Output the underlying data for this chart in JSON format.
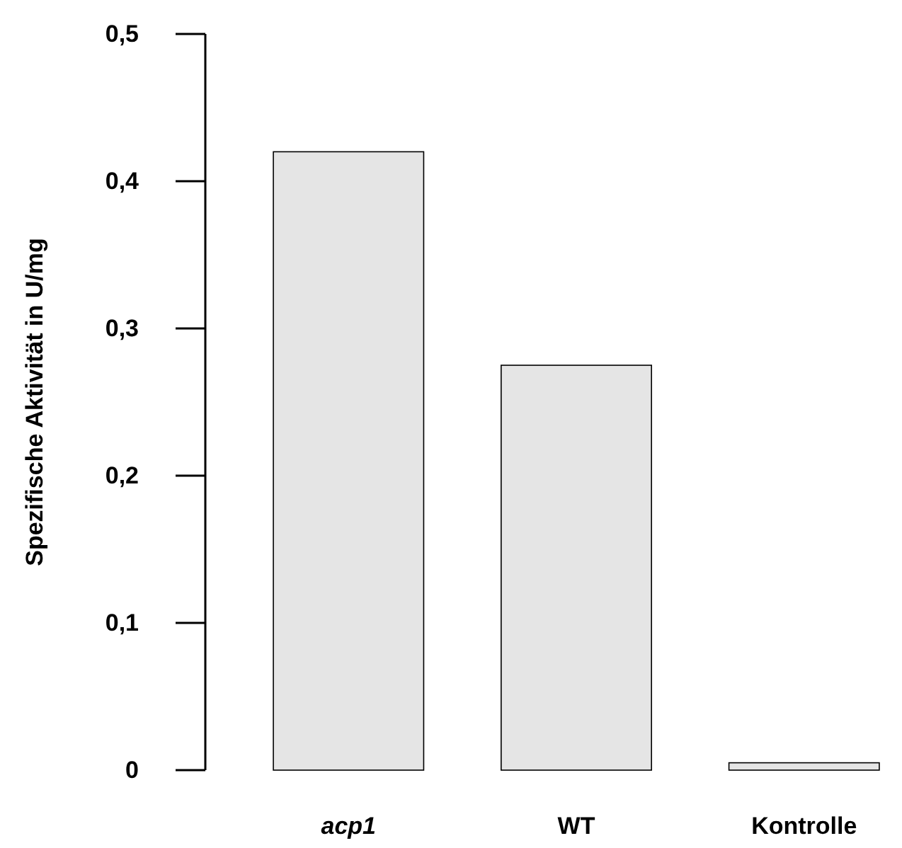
{
  "chart_data": {
    "type": "bar",
    "ylabel": "Spezifische Aktivität in U/mg",
    "categories": [
      "acp1",
      "WT",
      "Kontrolle"
    ],
    "values": [
      0.42,
      0.275,
      0.005
    ],
    "color": "#e5e5e5",
    "ylim": [
      0,
      0.5
    ],
    "yticks": [
      {
        "value": 0,
        "label": "0"
      },
      {
        "value": 0.1,
        "label": "0,1"
      },
      {
        "value": 0.2,
        "label": "0,2"
      },
      {
        "value": 0.3,
        "label": "0,3"
      },
      {
        "value": 0.4,
        "label": "0,4"
      },
      {
        "value": 0.5,
        "label": "0,5"
      }
    ],
    "grid": false
  }
}
